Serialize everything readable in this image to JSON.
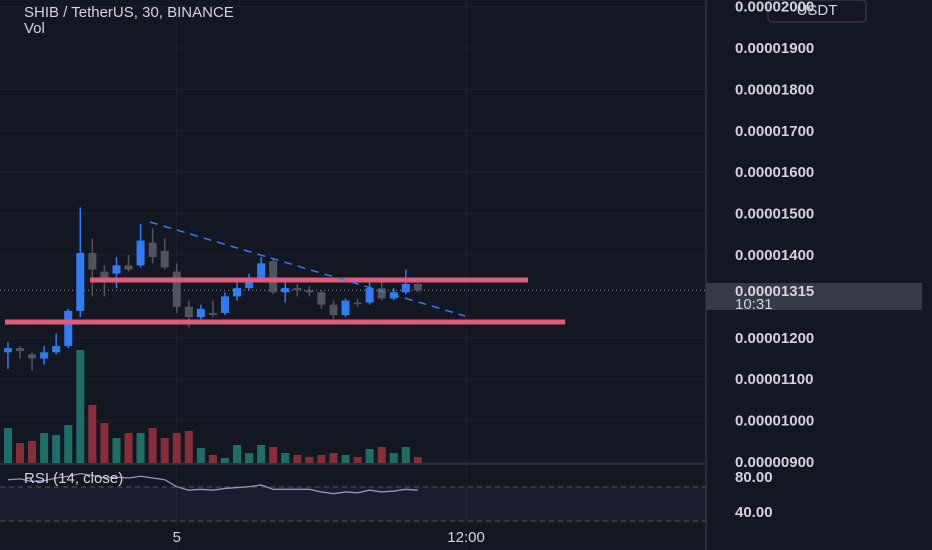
{
  "chart_data": {
    "type": "candlestick",
    "title": "SHIB / TetherUS, 30, BINANCE",
    "volume_label": "Vol",
    "currency_button": "USDT",
    "up_color": "#2f7cf6",
    "down_color": "#50545e",
    "volume_up_color": "#1d6f66",
    "volume_down_color": "#8a2d3a",
    "ylim": [
      9e-06,
      2.016e-05
    ],
    "yticks": [
      {
        "value": 2e-05,
        "label": "0.00002000"
      },
      {
        "value": 1.9e-05,
        "label": "0.00001900"
      },
      {
        "value": 1.8e-05,
        "label": "0.00001800"
      },
      {
        "value": 1.7e-05,
        "label": "0.00001700"
      },
      {
        "value": 1.6e-05,
        "label": "0.00001600"
      },
      {
        "value": 1.5e-05,
        "label": "0.00001500"
      },
      {
        "value": 1.4e-05,
        "label": "0.00001400"
      },
      {
        "value": 1.2e-05,
        "label": "0.00001200"
      },
      {
        "value": 1.1e-05,
        "label": "0.00001100"
      },
      {
        "value": 1e-05,
        "label": "0.00001000"
      },
      {
        "value": 9e-06,
        "label": "0.00000900"
      }
    ],
    "xlim": [
      -0.66,
      57.9
    ],
    "xticks": [
      {
        "value": 14,
        "label": "5"
      },
      {
        "value": 38,
        "label": "12:00"
      }
    ],
    "last_price": {
      "value": 1.315e-05,
      "label": "0.00001315"
    },
    "countdown": "10:31",
    "open": [
      1.165e-05,
      1.175e-05,
      1.16e-05,
      1.15e-05,
      1.165e-05,
      1.18e-05,
      1.265e-05,
      1.405e-05,
      1.36e-05,
      1.355e-05,
      1.375e-05,
      1.375e-05,
      1.43e-05,
      1.41e-05,
      1.36e-05,
      1.275e-05,
      1.25e-05,
      1.26e-05,
      1.26e-05,
      1.3e-05,
      1.32e-05,
      1.345e-05,
      1.385e-05,
      1.31e-05,
      1.32e-05,
      1.315e-05,
      1.31e-05,
      1.28e-05,
      1.255e-05,
      1.285e-05,
      1.285e-05,
      1.32e-05,
      1.295e-05,
      1.31e-05,
      1.33e-05
    ],
    "high": [
      1.19e-05,
      1.18e-05,
      1.165e-05,
      1.18e-05,
      1.21e-05,
      1.27e-05,
      1.515e-05,
      1.44e-05,
      1.375e-05,
      1.395e-05,
      1.4e-05,
      1.475e-05,
      1.465e-05,
      1.44e-05,
      1.38e-05,
      1.29e-05,
      1.28e-05,
      1.29e-05,
      1.31e-05,
      1.34e-05,
      1.355e-05,
      1.395e-05,
      1.39e-05,
      1.335e-05,
      1.33e-05,
      1.325e-05,
      1.315e-05,
      1.29e-05,
      1.295e-05,
      1.295e-05,
      1.34e-05,
      1.335e-05,
      1.32e-05,
      1.365e-05,
      1.345e-05
    ],
    "low": [
      1.125e-05,
      1.15e-05,
      1.12e-05,
      1.135e-05,
      1.16e-05,
      1.175e-05,
      1.25e-05,
      1.3e-05,
      1.3e-05,
      1.32e-05,
      1.36e-05,
      1.37e-05,
      1.38e-05,
      1.365e-05,
      1.26e-05,
      1.225e-05,
      1.245e-05,
      1.25e-05,
      1.255e-05,
      1.29e-05,
      1.315e-05,
      1.34e-05,
      1.305e-05,
      1.285e-05,
      1.3e-05,
      1.3e-05,
      1.27e-05,
      1.245e-05,
      1.25e-05,
      1.275e-05,
      1.28e-05,
      1.29e-05,
      1.29e-05,
      1.305e-05,
      1.31e-05
    ],
    "close": [
      1.175e-05,
      1.168e-05,
      1.15e-05,
      1.165e-05,
      1.18e-05,
      1.265e-05,
      1.405e-05,
      1.365e-05,
      1.345e-05,
      1.375e-05,
      1.365e-05,
      1.435e-05,
      1.395e-05,
      1.37e-05,
      1.275e-05,
      1.25e-05,
      1.27e-05,
      1.255e-05,
      1.3e-05,
      1.32e-05,
      1.345e-05,
      1.38e-05,
      1.31e-05,
      1.32e-05,
      1.315e-05,
      1.31e-05,
      1.28e-05,
      1.255e-05,
      1.29e-05,
      1.285e-05,
      1.32e-05,
      1.295e-05,
      1.31e-05,
      1.33e-05,
      1.315e-05
    ],
    "volume": {
      "ylim": [
        0,
        150
      ],
      "values": [
        35,
        20,
        22,
        30,
        28,
        38,
        113,
        58,
        40,
        25,
        30,
        30,
        35,
        25,
        30,
        32,
        15,
        8,
        5,
        18,
        10,
        18,
        16,
        10,
        8,
        6,
        8,
        10,
        8,
        6,
        14,
        16,
        10,
        16,
        6
      ]
    },
    "rsi": {
      "label": "RSI (14, close)",
      "color": "#a08cc8",
      "ylim": [
        9,
        93.7
      ],
      "yticks": [
        {
          "value": 80,
          "label": "80.00"
        },
        {
          "value": 40,
          "label": "40.00"
        }
      ],
      "values": [
        78,
        79,
        76,
        77,
        80,
        82,
        85,
        83,
        80,
        81,
        80,
        82,
        80,
        78,
        70,
        66,
        67,
        66,
        68,
        69,
        70,
        72,
        67,
        67,
        67,
        67,
        64,
        62,
        64,
        63,
        66,
        64,
        65,
        67,
        66
      ]
    }
  }
}
